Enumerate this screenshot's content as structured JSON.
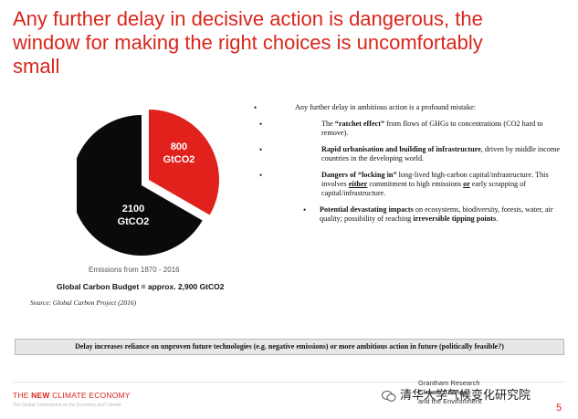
{
  "slide": {
    "title_lines": [
      "Any further delay in decisive action is dangerous, the",
      "window for making the right choices is uncomfortably",
      "small"
    ],
    "page_number": "5"
  },
  "pie": {
    "slices": [
      {
        "value_label": "800",
        "unit_label": "GtCO2",
        "color": "#e0211c"
      },
      {
        "value_label": "2100",
        "unit_label": "GtCO2",
        "color": "#0a0a0a"
      }
    ],
    "caption": "Emissions from 1870 - 2016",
    "budget_text": "Global Carbon Budget  = approx. 2,900 GtCO2",
    "source": "Source: Global Carbon Project (2016)"
  },
  "bullets": {
    "main": "Any further delay in ambitious action is a profound mistake:",
    "items": [
      {
        "pre": "The ",
        "bold": "“ratchet effect”",
        "post": " from flows of GHGs to concentrations (CO2 hard to remove)."
      },
      {
        "pre": "",
        "bold": "Rapid urbanisation and building of infrastructure",
        "post": ", driven by middle income countries in the developing world."
      },
      {
        "pre": "",
        "bold": "Dangers of “locking in”",
        "post": " long-lived high-carbon capital/infrastructure. This involves ",
        "u1": "either",
        "mid": " commitment to high emissions ",
        "u2": "or",
        "post2": " early scrapping of capital/infrastructure."
      },
      {
        "pre": "",
        "bold": "Potential devastating impacts",
        "post": " on ecosystems, biodiversity, forests, water, air quality; possibility of reaching ",
        "bold2": "irreversible tipping points",
        "post2": "."
      }
    ]
  },
  "delay_box": "Delay increases reliance on unproven future technologies (e.g. negative emissions) or more ambitious action in future (politically feasible?)",
  "footer": {
    "nce_prefix": "THE ",
    "nce_bold": "NEW",
    "nce_rest": " CLIMATE ECONOMY",
    "nce_sub": "The Global Commission on the Economy and Climate",
    "grantham_lines": [
      "Grantham Research",
      "Climate Change",
      "and the Environment"
    ],
    "watermark": "清华大学气候变化研究院"
  },
  "colors": {
    "accent_red": "#d9261c",
    "pie_red": "#e0211c",
    "pie_black": "#0a0a0a"
  }
}
